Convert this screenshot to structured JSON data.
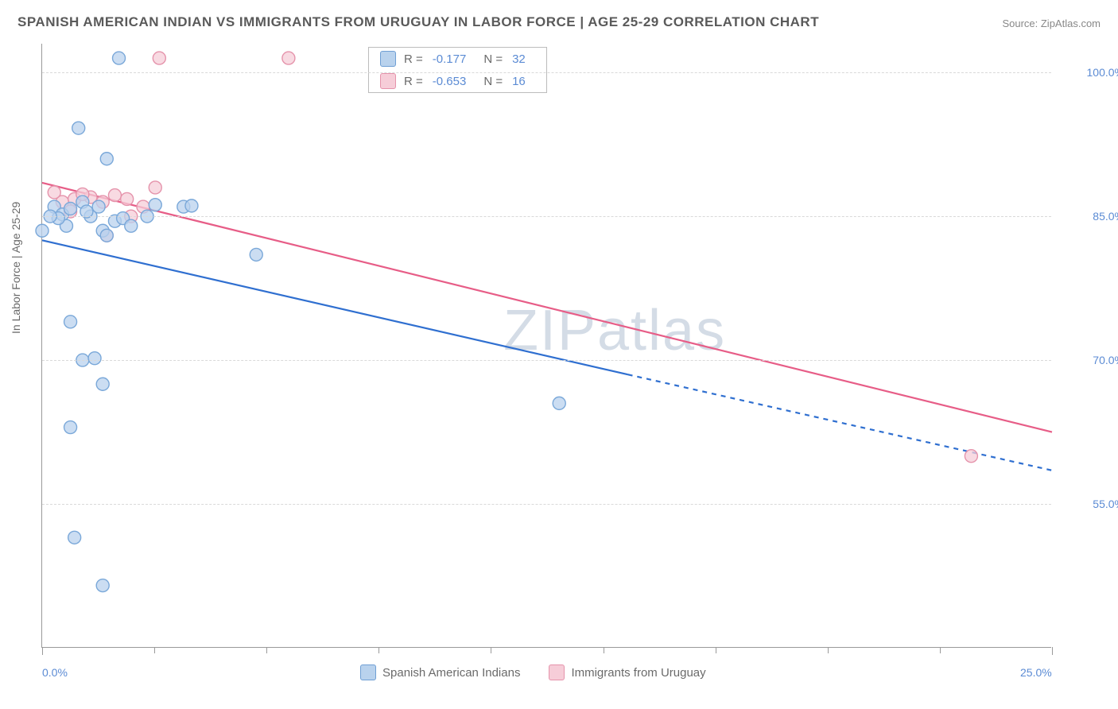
{
  "title": "SPANISH AMERICAN INDIAN VS IMMIGRANTS FROM URUGUAY IN LABOR FORCE | AGE 25-29 CORRELATION CHART",
  "source": "Source: ZipAtlas.com",
  "watermark": "ZIPatlas",
  "ylabel": "In Labor Force | Age 25-29",
  "chart": {
    "type": "scatter",
    "xlim": [
      0,
      25
    ],
    "ylim": [
      40,
      103
    ],
    "xtick_labels": [
      "0.0%",
      "25.0%"
    ],
    "xtick_positions": [
      0,
      25
    ],
    "xtick_minor": [
      2.78,
      5.56,
      8.33,
      11.11,
      13.89,
      16.67,
      19.44,
      22.22
    ],
    "ytick_labels": [
      "55.0%",
      "70.0%",
      "85.0%",
      "100.0%"
    ],
    "ytick_positions": [
      55,
      70,
      85,
      100
    ],
    "grid_color": "#d9d9d9",
    "background_color": "#ffffff",
    "axis_color": "#9a9a9a",
    "label_color": "#5b8bd4",
    "series": [
      {
        "name": "Spanish American Indians",
        "color_fill": "#b9d2ed",
        "color_stroke": "#7aa8d9",
        "swatch_fill": "#b9d2ed",
        "swatch_stroke": "#6f9fd4",
        "marker_radius": 8,
        "line_color": "#2f6fd0",
        "line_width": 2.2,
        "trend": {
          "x1": 0,
          "y1": 82.5,
          "x2": 14.5,
          "y2": 68.5,
          "dash_x2": 25,
          "dash_y2": 58.5
        },
        "R": "-0.177",
        "N": "32",
        "points": [
          [
            0.0,
            83.5
          ],
          [
            0.3,
            86.0
          ],
          [
            0.5,
            85.2
          ],
          [
            0.7,
            85.8
          ],
          [
            0.6,
            84.0
          ],
          [
            1.0,
            86.5
          ],
          [
            1.2,
            85.0
          ],
          [
            1.5,
            83.5
          ],
          [
            1.8,
            84.5
          ],
          [
            0.9,
            94.2
          ],
          [
            1.6,
            91.0
          ],
          [
            1.6,
            83.0
          ],
          [
            2.0,
            84.8
          ],
          [
            1.9,
            101.5
          ],
          [
            3.5,
            86.0
          ],
          [
            3.7,
            86.1
          ],
          [
            0.7,
            74.0
          ],
          [
            1.0,
            70.0
          ],
          [
            1.3,
            70.2
          ],
          [
            1.5,
            67.5
          ],
          [
            0.7,
            63.0
          ],
          [
            12.8,
            65.5
          ],
          [
            5.3,
            81.0
          ],
          [
            0.8,
            51.5
          ],
          [
            1.5,
            46.5
          ],
          [
            2.2,
            84.0
          ],
          [
            2.6,
            85.0
          ],
          [
            2.8,
            86.2
          ],
          [
            0.4,
            84.8
          ],
          [
            1.1,
            85.5
          ],
          [
            0.2,
            85.0
          ],
          [
            1.4,
            86.0
          ]
        ]
      },
      {
        "name": "Immigrants from Uruguay",
        "color_fill": "#f6cdd8",
        "color_stroke": "#e593ab",
        "swatch_fill": "#f6cdd8",
        "swatch_stroke": "#e593ab",
        "marker_radius": 8,
        "line_color": "#e75d87",
        "line_width": 2.2,
        "trend": {
          "x1": 0,
          "y1": 88.5,
          "x2": 25,
          "y2": 62.5
        },
        "R": "-0.653",
        "N": "16",
        "points": [
          [
            0.5,
            86.5
          ],
          [
            0.8,
            86.8
          ],
          [
            1.2,
            87.0
          ],
          [
            1.5,
            86.5
          ],
          [
            0.3,
            87.5
          ],
          [
            0.7,
            85.5
          ],
          [
            1.0,
            87.3
          ],
          [
            1.8,
            87.2
          ],
          [
            2.1,
            86.8
          ],
          [
            2.5,
            86.0
          ],
          [
            1.6,
            83.0
          ],
          [
            2.8,
            88.0
          ],
          [
            2.2,
            85.0
          ],
          [
            2.9,
            101.5
          ],
          [
            6.1,
            101.5
          ],
          [
            23.0,
            60.0
          ]
        ]
      }
    ]
  },
  "legend_bottom": [
    {
      "label": "Spanish American Indians",
      "fill": "#b9d2ed",
      "stroke": "#6f9fd4"
    },
    {
      "label": "Immigrants from Uruguay",
      "fill": "#f6cdd8",
      "stroke": "#e593ab"
    }
  ]
}
